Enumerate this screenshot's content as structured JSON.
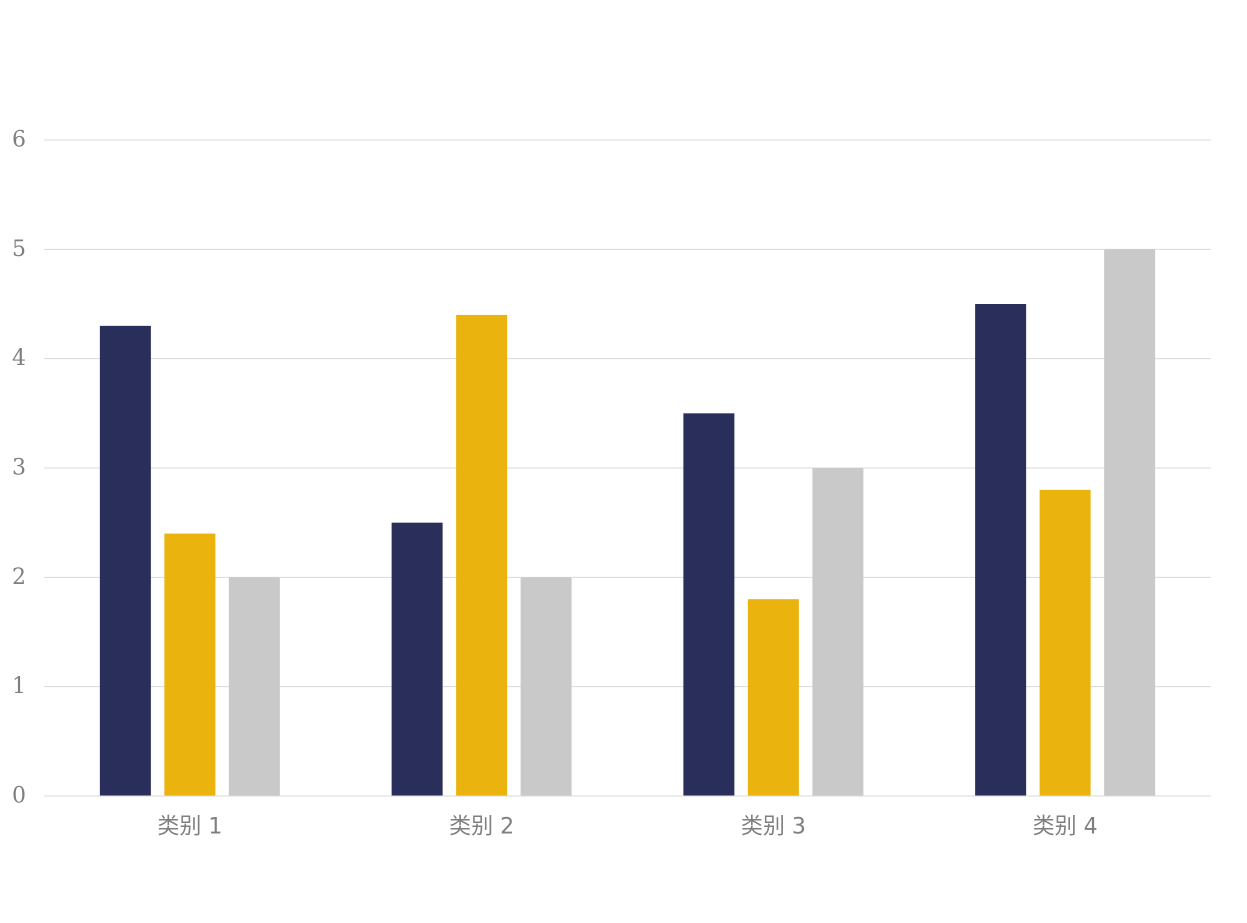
{
  "chart_data": {
    "type": "bar",
    "title": "",
    "xlabel": "",
    "ylabel": "",
    "categories": [
      "类别 1",
      "类别 2",
      "类别 3",
      "类别 4"
    ],
    "series": [
      {
        "values": [
          4.3,
          2.5,
          3.5,
          4.5
        ],
        "color": "#2a2e5a"
      },
      {
        "values": [
          2.4,
          4.4,
          1.8,
          2.8
        ],
        "color": "#eab30d"
      },
      {
        "values": [
          2,
          2,
          3,
          5
        ],
        "color": "#c9c9c9"
      }
    ],
    "ylim": [
      0,
      6
    ],
    "yticks": [
      "0",
      "1",
      "2",
      "3",
      "4",
      "5",
      "6"
    ],
    "grid": true,
    "legend": "none"
  }
}
